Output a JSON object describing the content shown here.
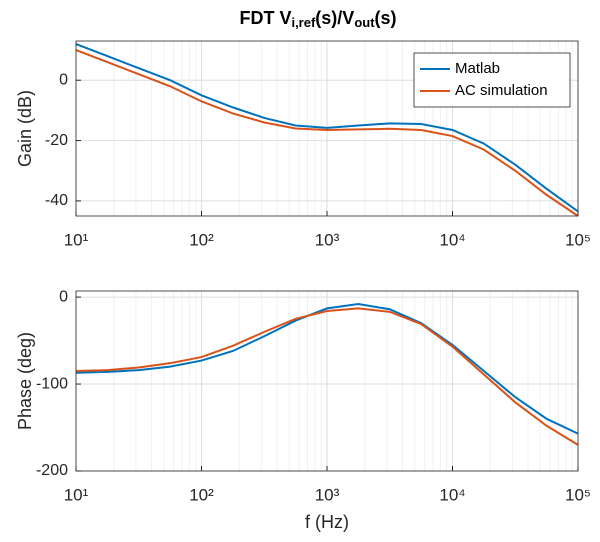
{
  "chart_data": [
    {
      "type": "line",
      "title": [
        "FDT V",
        "i,ref",
        "(s)/V",
        "out",
        "(s)"
      ],
      "ylabel": "Gain (dB)",
      "xscale": "log",
      "x": [
        10,
        17.78,
        31.62,
        56.23,
        100,
        177.8,
        316.2,
        562.3,
        1000,
        1778,
        3162,
        5623,
        10000,
        17780,
        31620,
        56230,
        100000
      ],
      "xlim": [
        10,
        100000
      ],
      "xticks": [
        {
          "value": 10,
          "label": "10¹"
        },
        {
          "value": 100,
          "label": "10²"
        },
        {
          "value": 1000,
          "label": "10³"
        },
        {
          "value": 10000,
          "label": "10⁴"
        },
        {
          "value": 100000,
          "label": "10⁵"
        }
      ],
      "ylim": [
        -45,
        13
      ],
      "yticks": [
        -40,
        -20,
        0
      ],
      "grid": true,
      "minor_grid": true,
      "legend": "northeast",
      "series": [
        {
          "name": "Matlab",
          "color": "#0072bd",
          "values": [
            12,
            8,
            4,
            0,
            -5,
            -9,
            -12.5,
            -15,
            -15.8,
            -15,
            -14.3,
            -14.5,
            -16.5,
            -21,
            -28,
            -36,
            -43.5
          ]
        },
        {
          "name": "AC simulation",
          "color": "#d95319",
          "values": [
            10,
            6,
            2,
            -2,
            -7,
            -11,
            -14,
            -16,
            -16.5,
            -16.3,
            -16.1,
            -16.5,
            -18.5,
            -23,
            -30,
            -38,
            -45
          ]
        }
      ]
    },
    {
      "type": "line",
      "ylabel": "Phase (deg)",
      "xlabel": "f (Hz)",
      "xscale": "log",
      "x": [
        10,
        17.78,
        31.62,
        56.23,
        100,
        177.8,
        316.2,
        562.3,
        1000,
        1778,
        3162,
        5623,
        10000,
        17780,
        31620,
        56230,
        100000
      ],
      "xlim": [
        10,
        100000
      ],
      "xticks": [
        {
          "value": 10,
          "label": "10¹"
        },
        {
          "value": 100,
          "label": "10²"
        },
        {
          "value": 1000,
          "label": "10³"
        },
        {
          "value": 10000,
          "label": "10⁴"
        },
        {
          "value": 100000,
          "label": "10⁵"
        }
      ],
      "ylim": [
        -200,
        7
      ],
      "yticks": [
        -200,
        -100,
        0
      ],
      "grid": true,
      "minor_grid": true,
      "series": [
        {
          "color": "#0072bd",
          "values": [
            -87,
            -86,
            -84,
            -80,
            -73,
            -62,
            -45,
            -27,
            -13,
            -8,
            -14,
            -30,
            -55,
            -85,
            -115,
            -140,
            -157
          ]
        },
        {
          "color": "#d95319",
          "values": [
            -85,
            -84,
            -81,
            -76,
            -69,
            -56,
            -40,
            -25,
            -16,
            -13,
            -17,
            -31,
            -57,
            -89,
            -121,
            -148,
            -170
          ]
        }
      ]
    }
  ]
}
